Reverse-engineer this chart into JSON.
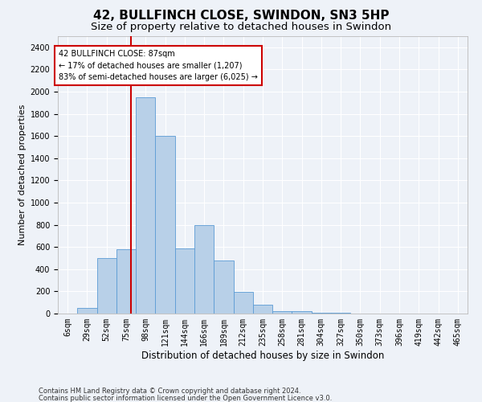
{
  "title": "42, BULLFINCH CLOSE, SWINDON, SN3 5HP",
  "subtitle": "Size of property relative to detached houses in Swindon",
  "xlabel": "Distribution of detached houses by size in Swindon",
  "ylabel": "Number of detached properties",
  "bar_labels": [
    "6sqm",
    "29sqm",
    "52sqm",
    "75sqm",
    "98sqm",
    "121sqm",
    "144sqm",
    "166sqm",
    "189sqm",
    "212sqm",
    "235sqm",
    "258sqm",
    "281sqm",
    "304sqm",
    "327sqm",
    "350sqm",
    "373sqm",
    "396sqm",
    "419sqm",
    "442sqm",
    "465sqm"
  ],
  "bar_values": [
    0,
    50,
    500,
    580,
    1950,
    1600,
    590,
    800,
    480,
    195,
    80,
    25,
    20,
    5,
    5,
    2,
    1,
    1,
    0,
    0,
    0
  ],
  "bar_color": "#b8d0e8",
  "bar_edge_color": "#5b9bd5",
  "ylim": [
    0,
    2500
  ],
  "yticks": [
    0,
    200,
    400,
    600,
    800,
    1000,
    1200,
    1400,
    1600,
    1800,
    2000,
    2200,
    2400
  ],
  "red_line_x": 3.75,
  "annotation_text": "42 BULLFINCH CLOSE: 87sqm\n← 17% of detached houses are smaller (1,207)\n83% of semi-detached houses are larger (6,025) →",
  "annotation_box_color": "#ffffff",
  "annotation_box_edge": "#cc0000",
  "footer1": "Contains HM Land Registry data © Crown copyright and database right 2024.",
  "footer2": "Contains public sector information licensed under the Open Government Licence v3.0.",
  "background_color": "#eef2f8",
  "grid_color": "#ffffff",
  "title_fontsize": 11,
  "subtitle_fontsize": 9.5,
  "xlabel_fontsize": 8.5,
  "ylabel_fontsize": 8,
  "tick_fontsize": 7,
  "footer_fontsize": 6
}
